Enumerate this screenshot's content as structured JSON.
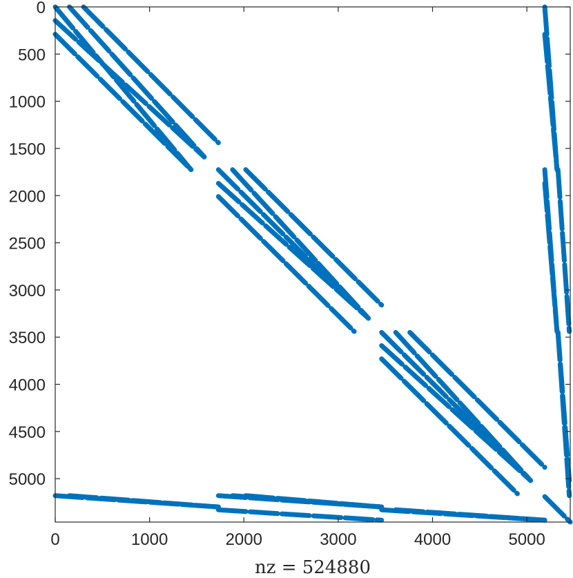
{
  "chart_data": {
    "type": "spy",
    "marker_color": "#0072BD",
    "axis_color": "#262626",
    "xlabel": "nz = 524880",
    "xlim": [
      0,
      5460
    ],
    "ylim": [
      0,
      5460
    ],
    "y_reversed": true,
    "x_ticks": [
      0,
      1000,
      2000,
      3000,
      4000,
      5000
    ],
    "y_ticks": [
      0,
      500,
      1000,
      1500,
      2000,
      2500,
      3000,
      3500,
      4000,
      4500,
      5000
    ],
    "x_tick_labels": [
      "0",
      "1000",
      "2000",
      "3000",
      "4000",
      "5000"
    ],
    "y_tick_labels": [
      "0",
      "500",
      "1000",
      "1500",
      "2000",
      "2500",
      "3000",
      "3500",
      "4000",
      "4500",
      "5000"
    ],
    "segments": [
      {
        "x": [
          0,
          1440
        ],
        "y": [
          0,
          1725
        ]
      },
      {
        "x": [
          0,
          1580
        ],
        "y": [
          145,
          1590
        ]
      },
      {
        "x": [
          0,
          1440
        ],
        "y": [
          290,
          1725
        ]
      },
      {
        "x": [
          150,
          1580
        ],
        "y": [
          0,
          1590
        ]
      },
      {
        "x": [
          300,
          1730
        ],
        "y": [
          0,
          1440
        ]
      },
      {
        "x": [
          1730,
          3170
        ],
        "y": [
          1725,
          3160
        ]
      },
      {
        "x": [
          1730,
          3320
        ],
        "y": [
          1870,
          3300
        ]
      },
      {
        "x": [
          1730,
          3170
        ],
        "y": [
          2010,
          3440
        ]
      },
      {
        "x": [
          1880,
          3320
        ],
        "y": [
          1725,
          3300
        ]
      },
      {
        "x": [
          2020,
          3460
        ],
        "y": [
          1725,
          3160
        ]
      },
      {
        "x": [
          3460,
          4900
        ],
        "y": [
          3450,
          4880
        ]
      },
      {
        "x": [
          3460,
          5040
        ],
        "y": [
          3590,
          5020
        ]
      },
      {
        "x": [
          3460,
          4900
        ],
        "y": [
          3730,
          5160
        ]
      },
      {
        "x": [
          3610,
          5040
        ],
        "y": [
          3450,
          5020
        ]
      },
      {
        "x": [
          3760,
          5190
        ],
        "y": [
          3450,
          4880
        ]
      },
      {
        "x": [
          0,
          1730
        ],
        "y": [
          5180,
          5300
        ]
      },
      {
        "x": [
          150,
          1730
        ],
        "y": [
          5180,
          5300
        ]
      },
      {
        "x": [
          1730,
          3460
        ],
        "y": [
          5180,
          5300
        ]
      },
      {
        "x": [
          1880,
          3460
        ],
        "y": [
          5180,
          5300
        ]
      },
      {
        "x": [
          1730,
          3460
        ],
        "y": [
          5330,
          5440
        ]
      },
      {
        "x": [
          2020,
          3460
        ],
        "y": [
          5180,
          5300
        ]
      },
      {
        "x": [
          3460,
          5190
        ],
        "y": [
          5330,
          5440
        ]
      },
      {
        "x": [
          3610,
          5190
        ],
        "y": [
          5330,
          5440
        ]
      },
      {
        "x": [
          5190,
          5320
        ],
        "y": [
          0,
          1725
        ]
      },
      {
        "x": [
          5190,
          5320
        ],
        "y": [
          290,
          1725
        ]
      },
      {
        "x": [
          5190,
          5320
        ],
        "y": [
          1725,
          3440
        ]
      },
      {
        "x": [
          5330,
          5450
        ],
        "y": [
          1725,
          3440
        ]
      },
      {
        "x": [
          5190,
          5320
        ],
        "y": [
          1870,
          3440
        ]
      },
      {
        "x": [
          5330,
          5450
        ],
        "y": [
          3450,
          5180
        ]
      },
      {
        "x": [
          5330,
          5450
        ],
        "y": [
          3450,
          5020
        ]
      },
      {
        "x": [
          5190,
          5460
        ],
        "y": [
          5190,
          5460
        ]
      }
    ]
  }
}
